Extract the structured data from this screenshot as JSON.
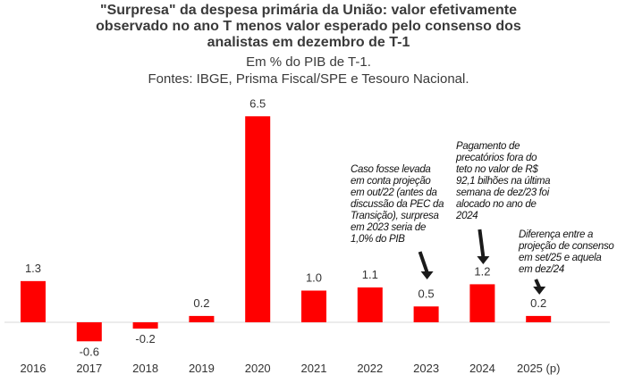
{
  "chart_data": {
    "type": "bar",
    "title_lines": [
      "\"Surpresa\" da despesa primária da União: valor efetivamente",
      "observado no ano T menos valor esperado pelo consenso dos",
      "analistas em dezembro de T-1"
    ],
    "subtitle_lines": [
      "Em % do PIB de T-1.",
      "Fontes: IBGE, Prisma Fiscal/SPE e Tesouro Nacional."
    ],
    "categories": [
      "2016",
      "2017",
      "2018",
      "2019",
      "2020",
      "2021",
      "2022",
      "2023",
      "2024",
      "2025 (p)"
    ],
    "values": [
      1.3,
      -0.6,
      -0.2,
      0.2,
      6.5,
      1.0,
      1.1,
      0.5,
      1.2,
      0.2
    ],
    "labels": [
      "1.3",
      "-0.6",
      "-0.2",
      "0.2",
      "6.5",
      "1.0",
      "1.1",
      "0.5",
      "1.2",
      "0.2"
    ],
    "bar_color": "#ff0000",
    "annotations": [
      {
        "category": "2023",
        "text": "Caso fosse levada em conta projeção em out/22 (antes da discussão da PEC da Transição), surpresa em 2023 seria de 1,0% do PIB"
      },
      {
        "category": "2024",
        "text": "Pagamento de precatórios fora do teto no valor de R$ 92,1 bilhões na última semana de dez/23 foi alocado no ano de 2024"
      },
      {
        "category": "2025 (p)",
        "text": "Diferença entre a projeção de consenso em set/25 e aquela em dez/24"
      }
    ]
  }
}
